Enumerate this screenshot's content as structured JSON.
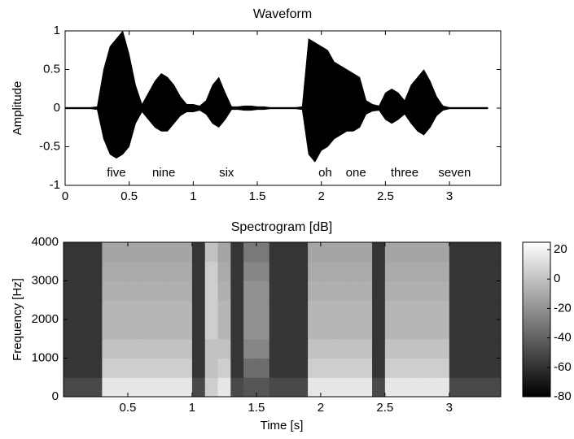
{
  "chart_data": [
    {
      "type": "waveform",
      "title": "Waveform",
      "y_label": "Amplitude",
      "color": "#000000",
      "x": [
        0,
        0.05,
        0.1,
        0.15,
        0.2,
        0.25,
        0.3,
        0.35,
        0.4,
        0.45,
        0.5,
        0.55,
        0.6,
        0.65,
        0.7,
        0.75,
        0.8,
        0.85,
        0.9,
        0.95,
        1,
        1.05,
        1.1,
        1.15,
        1.2,
        1.25,
        1.3,
        1.35,
        1.4,
        1.45,
        1.5,
        1.55,
        1.6,
        1.65,
        1.7,
        1.75,
        1.8,
        1.85,
        1.9,
        1.95,
        2,
        2.05,
        2.1,
        2.15,
        2.2,
        2.25,
        2.3,
        2.35,
        2.4,
        2.45,
        2.5,
        2.55,
        2.6,
        2.65,
        2.7,
        2.75,
        2.8,
        2.85,
        2.9,
        2.95,
        3,
        3.05,
        3.1,
        3.15,
        3.2,
        3.25,
        3.3
      ],
      "values": [
        0.01,
        0.01,
        0.01,
        0.01,
        0.01,
        0.02,
        0.5,
        0.8,
        0.9,
        1,
        0.7,
        0.3,
        0.05,
        0.2,
        0.35,
        0.45,
        0.4,
        0.3,
        0.15,
        0.05,
        0.05,
        0.03,
        0.1,
        0.3,
        0.4,
        0.2,
        0.02,
        0.02,
        0.03,
        0.03,
        0.02,
        0.02,
        0.01,
        0.01,
        0.01,
        0.01,
        0.01,
        0.02,
        0.9,
        0.85,
        0.8,
        0.75,
        0.6,
        0.55,
        0.5,
        0.45,
        0.4,
        0.1,
        0.05,
        0.03,
        0.2,
        0.25,
        0.2,
        0.1,
        0.3,
        0.4,
        0.5,
        0.35,
        0.15,
        0.03,
        0.01,
        0.01,
        0.01,
        0.01,
        0.01,
        0.01,
        0.01
      ],
      "lower": [
        -0.01,
        -0.01,
        -0.01,
        -0.01,
        -0.01,
        -0.02,
        -0.4,
        -0.6,
        -0.65,
        -0.6,
        -0.5,
        -0.2,
        -0.05,
        -0.15,
        -0.25,
        -0.3,
        -0.3,
        -0.2,
        -0.1,
        -0.05,
        -0.05,
        -0.03,
        -0.08,
        -0.2,
        -0.25,
        -0.15,
        -0.02,
        -0.02,
        -0.03,
        -0.03,
        -0.02,
        -0.02,
        -0.01,
        -0.01,
        -0.01,
        -0.01,
        -0.01,
        -0.02,
        -0.6,
        -0.7,
        -0.55,
        -0.5,
        -0.4,
        -0.35,
        -0.3,
        -0.3,
        -0.25,
        -0.08,
        -0.04,
        -0.03,
        -0.15,
        -0.2,
        -0.15,
        -0.08,
        -0.2,
        -0.3,
        -0.35,
        -0.25,
        -0.1,
        -0.03,
        -0.01,
        -0.01,
        -0.01,
        -0.01,
        -0.01,
        -0.01,
        -0.01
      ],
      "annotations": [
        {
          "text": "five",
          "x": 0.4,
          "y": -0.84
        },
        {
          "text": "nine",
          "x": 0.77,
          "y": -0.84
        },
        {
          "text": "six",
          "x": 1.26,
          "y": -0.84
        },
        {
          "text": "oh",
          "x": 2.03,
          "y": -0.84
        },
        {
          "text": "one",
          "x": 2.27,
          "y": -0.84
        },
        {
          "text": "three",
          "x": 2.65,
          "y": -0.84
        },
        {
          "text": "seven",
          "x": 3.04,
          "y": -0.84
        }
      ],
      "xlim": [
        0,
        3.4
      ],
      "ylim": [
        -1,
        1
      ],
      "xticks": [
        0,
        0.5,
        1,
        1.5,
        2,
        2.5,
        3
      ],
      "yticks": [
        -1,
        -0.5,
        0,
        0.5,
        1
      ]
    },
    {
      "type": "spectrogram",
      "title": "Spectrogram [dB]",
      "x_label": "Time [s]",
      "y_label": "Frequency [Hz]",
      "colormap": "gray",
      "xlim": [
        0,
        3.4
      ],
      "ylim": [
        0,
        4000
      ],
      "xticks": [
        0.5,
        1,
        1.5,
        2,
        2.5,
        3
      ],
      "yticks": [
        0,
        1000,
        2000,
        3000,
        4000
      ],
      "clim": [
        -80,
        25
      ],
      "cticks": [
        -80,
        -60,
        -40,
        -20,
        0,
        20
      ],
      "z": [
        [
          -50,
          -50,
          -50,
          15,
          15,
          15,
          15,
          15,
          15,
          15,
          -50,
          5,
          15,
          -50,
          -45,
          -45,
          -50,
          -50,
          -50,
          15,
          15,
          15,
          15,
          15,
          -50,
          15,
          15,
          15,
          15,
          15,
          -50,
          -50,
          -50,
          -50
        ],
        [
          -58,
          -58,
          -58,
          5,
          5,
          5,
          5,
          5,
          5,
          5,
          -58,
          0,
          5,
          -58,
          -35,
          -35,
          -58,
          -58,
          -58,
          5,
          5,
          5,
          5,
          5,
          -58,
          5,
          5,
          5,
          5,
          5,
          -58,
          -58,
          -58,
          -58
        ],
        [
          -58,
          -58,
          -58,
          0,
          0,
          0,
          0,
          0,
          0,
          0,
          -58,
          0,
          0,
          -58,
          -25,
          -25,
          -58,
          -58,
          -58,
          0,
          0,
          0,
          0,
          0,
          -58,
          0,
          0,
          0,
          0,
          0,
          -58,
          -58,
          -58,
          -58
        ],
        [
          -58,
          -58,
          -58,
          -5,
          -5,
          -5,
          -5,
          -5,
          -5,
          -5,
          -58,
          5,
          -5,
          -58,
          -20,
          -20,
          -58,
          -58,
          -58,
          -5,
          -5,
          -5,
          -5,
          -5,
          -58,
          -5,
          -5,
          -5,
          -5,
          -5,
          -58,
          -58,
          -58,
          -58
        ],
        [
          -58,
          -58,
          -58,
          -5,
          -5,
          -5,
          -5,
          -5,
          -5,
          -5,
          -58,
          5,
          -5,
          -58,
          -20,
          -20,
          -58,
          -58,
          -58,
          -5,
          -5,
          -5,
          -5,
          -5,
          -58,
          -5,
          -5,
          -5,
          -5,
          -5,
          -58,
          -58,
          -58,
          -58
        ],
        [
          -58,
          -58,
          -58,
          -8,
          -8,
          -8,
          -8,
          -8,
          -8,
          -8,
          -58,
          5,
          -8,
          -58,
          -20,
          -20,
          -58,
          -58,
          -58,
          -8,
          -8,
          -8,
          -8,
          -8,
          -58,
          -8,
          -8,
          -8,
          -8,
          -8,
          -58,
          -58,
          -58,
          -58
        ],
        [
          -58,
          -58,
          -58,
          -10,
          -10,
          -10,
          -10,
          -10,
          -10,
          -10,
          -58,
          5,
          -10,
          -58,
          -25,
          -25,
          -58,
          -58,
          -58,
          -10,
          -10,
          -10,
          -10,
          -10,
          -58,
          -10,
          -10,
          -10,
          -10,
          -10,
          -58,
          -58,
          -58,
          -58
        ],
        [
          -58,
          -58,
          -58,
          -12,
          -12,
          -12,
          -12,
          -12,
          -12,
          -12,
          -58,
          0,
          -12,
          -58,
          -30,
          -30,
          -58,
          -58,
          -58,
          -12,
          -12,
          -12,
          -12,
          -12,
          -58,
          -12,
          -12,
          -12,
          -12,
          -12,
          -58,
          -58,
          -58,
          -58
        ]
      ]
    }
  ]
}
